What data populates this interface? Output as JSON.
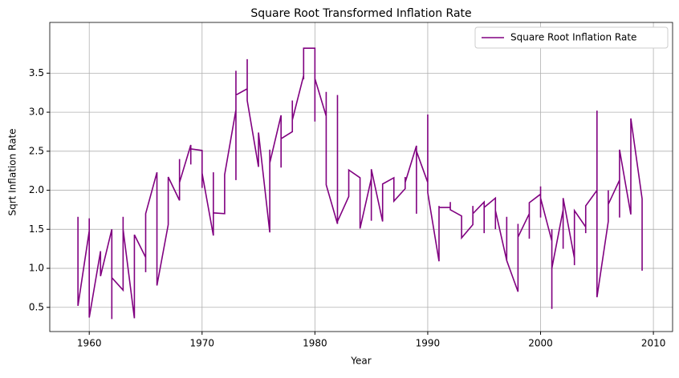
{
  "chart_data": {
    "type": "line",
    "title": "Square Root Transformed Inflation Rate",
    "xlabel": "Year",
    "ylabel": "Sqrt Inflation Rate",
    "x": [
      1959,
      1959,
      1959,
      1960,
      1960,
      1960,
      1961,
      1961,
      1962,
      1962,
      1962,
      1963,
      1963,
      1963,
      1964,
      1964,
      1965,
      1965,
      1965,
      1966,
      1966,
      1967,
      1967,
      1968,
      1968,
      1968,
      1969,
      1969,
      1969,
      1970,
      1970,
      1970,
      1971,
      1971,
      1971,
      1972,
      1972,
      1973,
      1973,
      1973,
      1973,
      1974,
      1974,
      1974,
      1975,
      1975,
      1976,
      1976,
      1976,
      1977,
      1977,
      1977,
      1978,
      1978,
      1978,
      1979,
      1979,
      1979,
      1980,
      1980,
      1980,
      1981,
      1981,
      1981,
      1982,
      1982,
      1982,
      1983,
      1983,
      1984,
      1984,
      1985,
      1985,
      1985,
      1986,
      1986,
      1987,
      1987,
      1988,
      1988,
      1988,
      1989,
      1989,
      1989,
      1990,
      1990,
      1990,
      1991,
      1991,
      1991,
      1992,
      1992,
      1992,
      1993,
      1993,
      1994,
      1994,
      1994,
      1995,
      1995,
      1995,
      1996,
      1996,
      1996,
      1997,
      1997,
      1997,
      1998,
      1998,
      1998,
      1999,
      1999,
      1999,
      2000,
      2000,
      2000,
      2000,
      2001,
      2001,
      2001,
      2001,
      2002,
      2002,
      2002,
      2003,
      2003,
      2003,
      2004,
      2004,
      2004,
      2005,
      2005,
      2005,
      2006,
      2006,
      2006,
      2007,
      2007,
      2007,
      2008,
      2008,
      2009,
      2009
    ],
    "series": [
      {
        "name": "Square Root Inflation Rate",
        "color": "#800080",
        "values": [
          1.66,
          1.58,
          0.52,
          1.48,
          1.64,
          0.37,
          1.22,
          0.9,
          1.5,
          0.35,
          0.88,
          0.72,
          1.66,
          1.5,
          0.36,
          1.43,
          1.14,
          0.95,
          1.7,
          2.23,
          0.78,
          1.56,
          2.17,
          1.87,
          2.4,
          2.1,
          2.58,
          2.33,
          2.53,
          2.51,
          2.03,
          2.22,
          1.42,
          2.23,
          1.71,
          1.7,
          2.2,
          3.03,
          2.13,
          3.53,
          3.22,
          3.3,
          3.68,
          3.15,
          2.3,
          2.74,
          1.46,
          2.52,
          2.35,
          2.96,
          2.29,
          2.66,
          2.75,
          3.15,
          2.9,
          3.47,
          3.42,
          3.82,
          3.82,
          2.88,
          3.43,
          2.95,
          3.26,
          2.07,
          1.57,
          3.22,
          1.6,
          1.92,
          2.26,
          2.16,
          1.51,
          2.15,
          1.61,
          2.27,
          1.6,
          2.08,
          2.16,
          1.86,
          2.02,
          2.17,
          2.1,
          2.57,
          1.7,
          2.5,
          2.1,
          2.97,
          1.97,
          1.09,
          1.8,
          1.78,
          1.78,
          1.85,
          1.75,
          1.67,
          1.39,
          1.56,
          1.8,
          1.7,
          1.85,
          1.45,
          1.78,
          1.9,
          1.5,
          1.74,
          1.1,
          1.66,
          1.1,
          0.7,
          1.57,
          1.4,
          1.7,
          1.38,
          1.84,
          1.95,
          2.05,
          1.65,
          1.9,
          1.35,
          0.48,
          1.5,
          1.0,
          1.75,
          1.25,
          1.9,
          1.13,
          1.04,
          1.74,
          1.53,
          1.45,
          1.8,
          2.0,
          3.02,
          0.63,
          1.6,
          2.0,
          1.82,
          2.13,
          1.65,
          2.52,
          1.69,
          2.92,
          1.89,
          0.97
        ]
      }
    ],
    "xlim": [
      1956.5,
      2011.7
    ],
    "ylim": [
      0.19,
      4.15
    ],
    "xticks": [
      1960,
      1970,
      1980,
      1990,
      2000,
      2010
    ],
    "yticks": [
      0.5,
      {
        "value": 1,
        "label": "1.0"
      },
      1.5,
      {
        "value": 2,
        "label": "2.0"
      },
      2.5,
      {
        "value": 3,
        "label": "3.0"
      },
      3.5
    ],
    "grid": true,
    "legend": "upper right"
  }
}
